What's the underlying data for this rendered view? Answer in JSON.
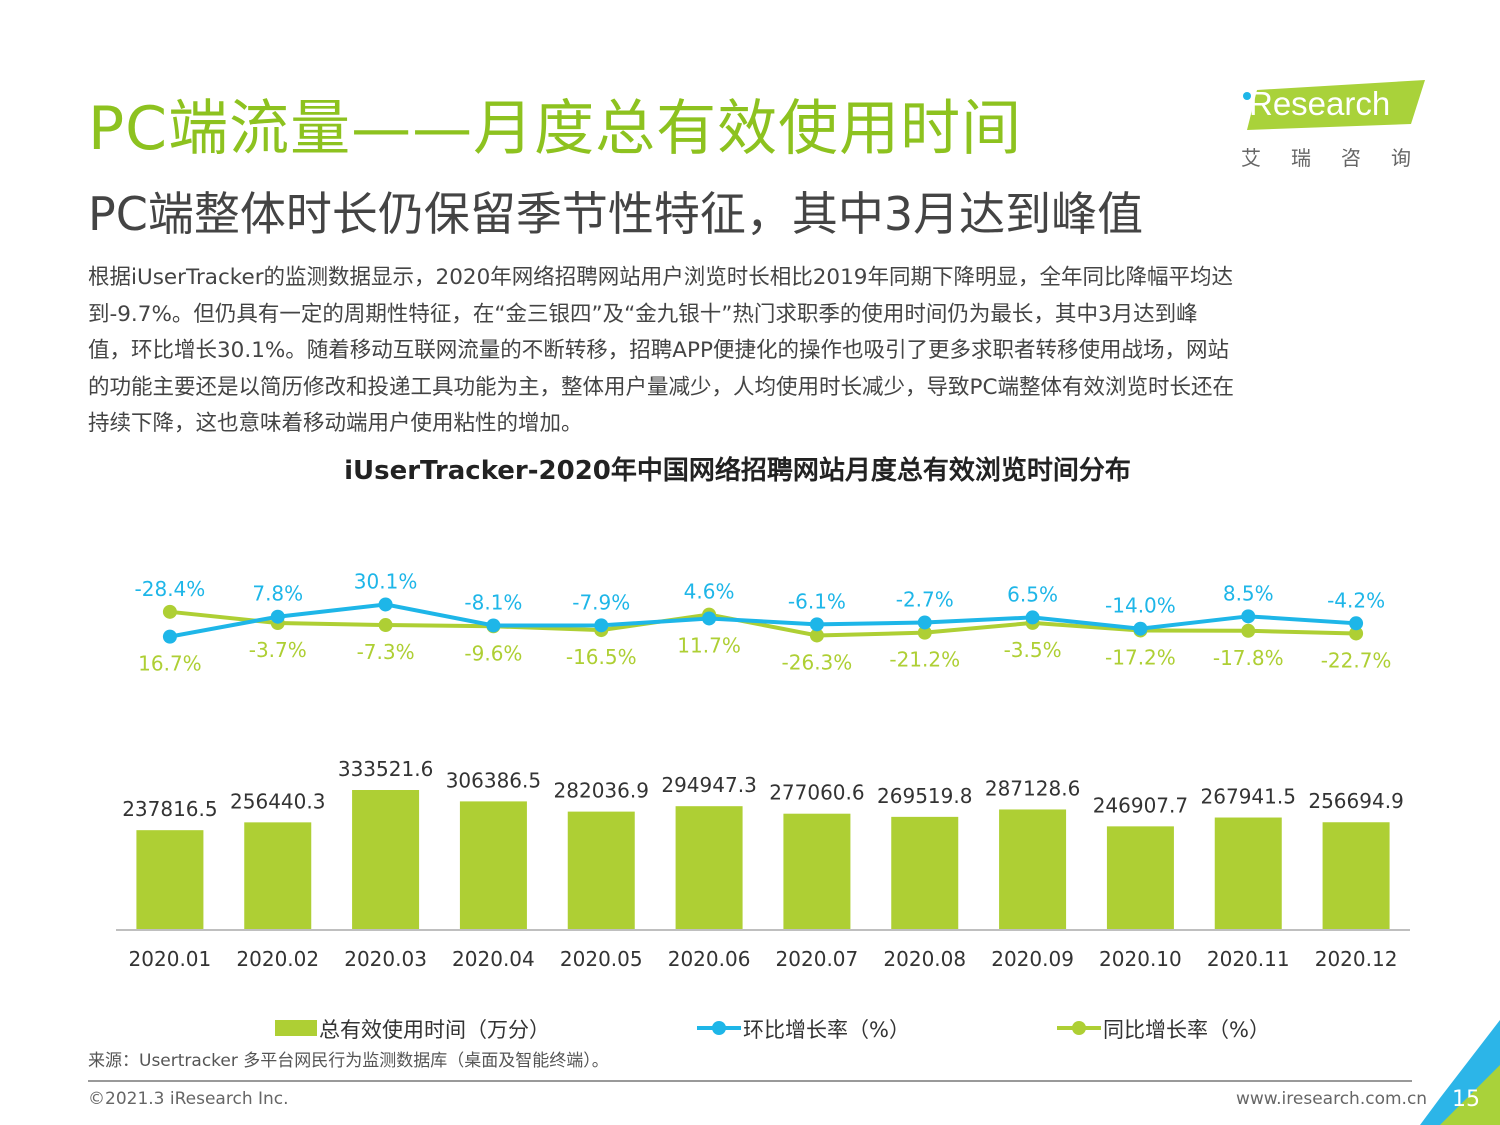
{
  "header": {
    "title": "PC端流量——月度总有效使用时间",
    "subtitle": "PC端整体时长仍保留季节性特征，其中3月达到峰值",
    "logo_text": "iResearch",
    "logo_cn": "艾瑞咨询"
  },
  "body_lines": [
    "根据iUserTracker的监测数据显示，2020年网络招聘网站用户浏览时长相比2019年同期下降明显，全年同比降幅平均达",
    "到-9.7%。但仍具有一定的周期性特征，在“金三银四”及“金九银十”热门求职季的使用时间仍为最长，其中3月达到峰",
    "值，环比增长30.1%。随着移动互联网流量的不断转移，招聘APP便捷化的操作也吸引了更多求职者转移使用战场，网站",
    "的功能主要还是以简历修改和投递工具功能为主，整体用户量减少，人均使用时长减少，导致PC端整体有效浏览时长还在",
    "持续下降，这也意味着移动端用户使用粘性的增加。"
  ],
  "chart_data": {
    "type": "bar",
    "title": "iUserTracker-2020年中国网络招聘网站月度总有效浏览时间分布",
    "categories": [
      "2020.01",
      "2020.02",
      "2020.03",
      "2020.04",
      "2020.05",
      "2020.06",
      "2020.07",
      "2020.08",
      "2020.09",
      "2020.10",
      "2020.11",
      "2020.12"
    ],
    "series": [
      {
        "name": "总有效使用时间（万分）",
        "type": "bar",
        "color": "#aecf34",
        "values": [
          237816.5,
          256440.3,
          333521.6,
          306386.5,
          282036.9,
          294947.3,
          277060.6,
          269519.8,
          287128.6,
          246907.7,
          267941.5,
          256694.9
        ],
        "labels": [
          "237816.5",
          "256440.3",
          "333521.6",
          "306386.5",
          "282036.9",
          "294947.3",
          "277060.6",
          "269519.8",
          "287128.6",
          "246907.7",
          "267941.5",
          "256694.9"
        ]
      },
      {
        "name": "环比增长率（%）",
        "type": "line",
        "color": "#1eb6e8",
        "values": [
          -28.4,
          7.8,
          30.1,
          -8.1,
          -7.9,
          4.6,
          -6.1,
          -2.7,
          6.5,
          -14.0,
          8.5,
          -4.2
        ],
        "labels": [
          "-28.4%",
          "7.8%",
          "30.1%",
          "-8.1%",
          "-7.9%",
          "4.6%",
          "-6.1%",
          "-2.7%",
          "6.5%",
          "-14.0%",
          "8.5%",
          "-4.2%"
        ]
      },
      {
        "name": "同比增长率（%）",
        "type": "line",
        "color": "#aecf34",
        "values": [
          16.7,
          -3.7,
          -7.3,
          -9.6,
          -16.5,
          11.7,
          -26.3,
          -21.2,
          -3.5,
          -17.2,
          -17.8,
          -22.7
        ],
        "labels": [
          "16.7%",
          "-3.7%",
          "-7.3%",
          "-9.6%",
          "-16.5%",
          "11.7%",
          "-26.3%",
          "-21.2%",
          "-3.5%",
          "-17.2%",
          "-17.8%",
          "-22.7%"
        ]
      }
    ],
    "legend_position": "bottom",
    "grid": false
  },
  "footer": {
    "source": "来源：Usertracker 多平台网民行为监测数据库（桌面及智能终端）。",
    "copyright": "©2021.3 iResearch Inc.",
    "website": "www.iresearch.com.cn",
    "page_number": "15"
  },
  "colors": {
    "title_green": "#8dc21f",
    "bar_green": "#aecf34",
    "line_blue": "#1eb6e8",
    "corner_blue": "#2cb5e8",
    "corner_green": "#a9d23a"
  }
}
